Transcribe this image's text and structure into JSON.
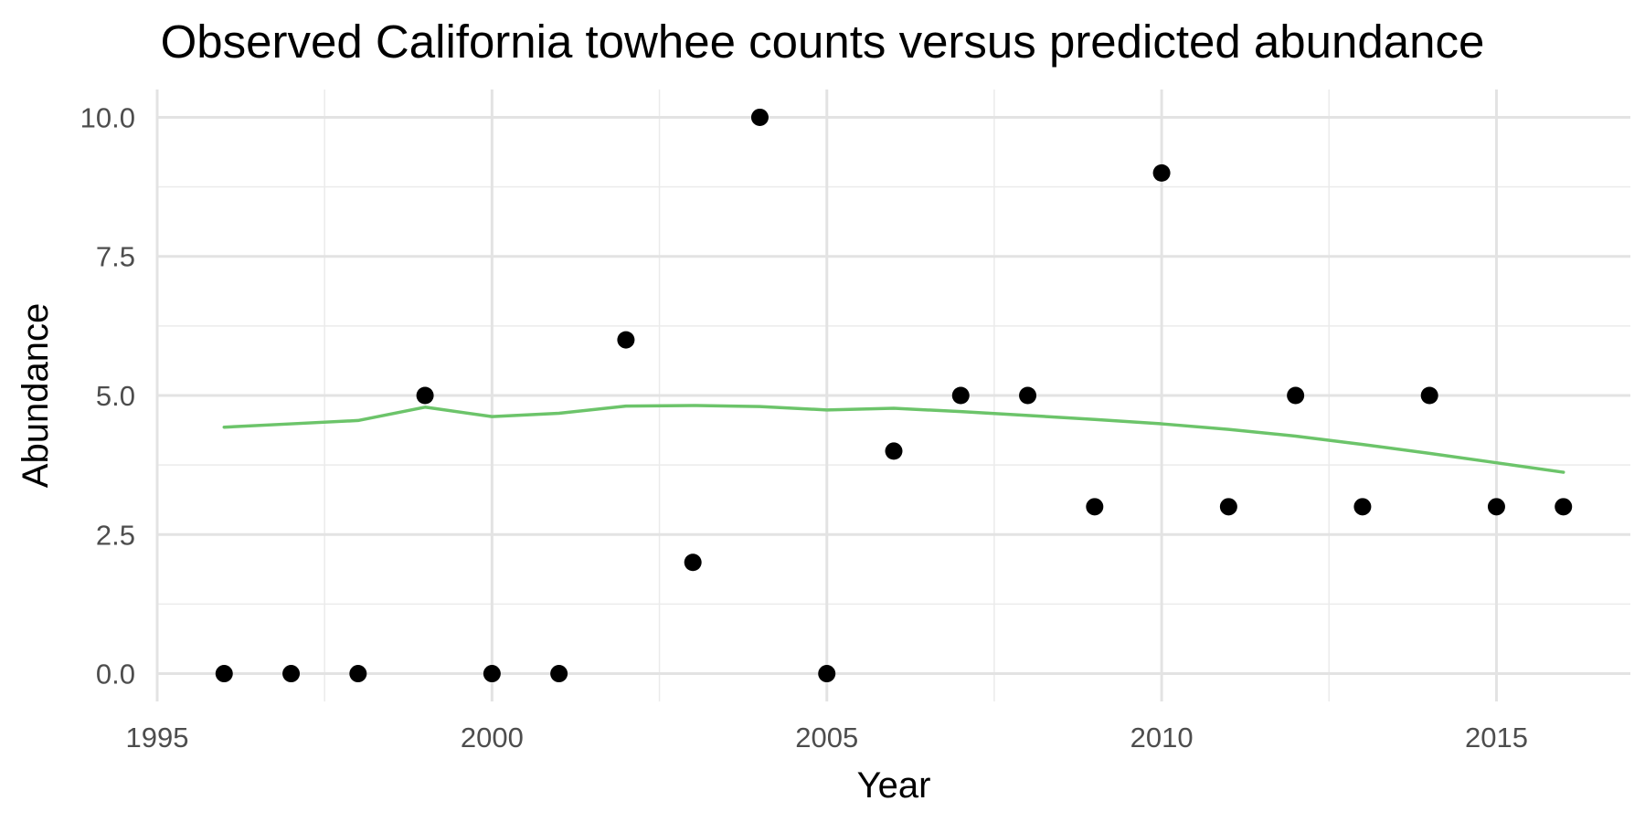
{
  "chart_data": {
    "type": "scatter",
    "title": "Observed California towhee counts versus predicted abundance",
    "xlabel": "Year",
    "ylabel": "Abundance",
    "xlim": [
      1995,
      2017
    ],
    "ylim": [
      -0.5,
      10.5
    ],
    "x_ticks": [
      1995,
      2000,
      2005,
      2010,
      2015
    ],
    "y_ticks": [
      0.0,
      2.5,
      5.0,
      7.5,
      10.0
    ],
    "y_tick_labels": [
      "0.0",
      "2.5",
      "5.0",
      "7.5",
      "10.0"
    ],
    "grid": true,
    "legend": "none",
    "series": [
      {
        "kind": "points",
        "color": "#000000",
        "x": [
          1996,
          1997,
          1998,
          1999,
          2000,
          2001,
          2002,
          2003,
          2004,
          2005,
          2006,
          2007,
          2008,
          2009,
          2010,
          2011,
          2012,
          2013,
          2014,
          2015,
          2016
        ],
        "y": [
          0,
          0,
          0,
          5,
          0,
          0,
          6,
          2,
          10,
          0,
          4,
          5,
          5,
          3,
          9,
          3,
          5,
          3,
          5,
          3,
          3
        ]
      },
      {
        "kind": "line",
        "color": "#6cc46a",
        "x": [
          1996,
          1997,
          1998,
          1999,
          2000,
          2001,
          2002,
          2003,
          2004,
          2005,
          2006,
          2007,
          2008,
          2009,
          2010,
          2011,
          2012,
          2013,
          2014,
          2015,
          2016
        ],
        "y": [
          4.43,
          4.49,
          4.55,
          4.79,
          4.62,
          4.68,
          4.81,
          4.82,
          4.8,
          4.74,
          4.77,
          4.71,
          4.64,
          4.57,
          4.49,
          4.39,
          4.27,
          4.12,
          3.96,
          3.79,
          3.62
        ]
      }
    ]
  }
}
